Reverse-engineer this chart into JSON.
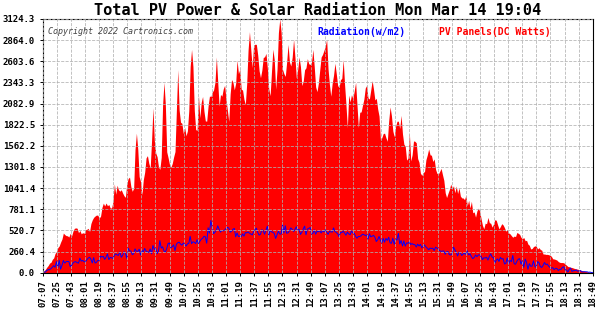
{
  "title": "Total PV Power & Solar Radiation Mon Mar 14 19:04",
  "copyright": "Copyright 2022 Cartronics.com",
  "legend_radiation": "Radiation(w/m2)",
  "legend_pv": "PV Panels(DC Watts)",
  "yticks": [
    0.0,
    260.4,
    520.7,
    781.1,
    1041.4,
    1301.8,
    1562.2,
    1822.5,
    2082.9,
    2343.3,
    2603.6,
    2864.0,
    3124.3
  ],
  "ymax": 3124.3,
  "bg_color": "#ffffff",
  "plot_bg_color": "#ffffff",
  "grid_color": "#b0b0b0",
  "pv_color": "#ff0000",
  "radiation_color": "#0000ff",
  "title_color": "#000000",
  "title_fontsize": 11,
  "tick_fontsize": 6.5,
  "xtick_labels": [
    "07:07",
    "07:25",
    "07:43",
    "08:01",
    "08:19",
    "08:37",
    "08:55",
    "09:13",
    "09:31",
    "09:49",
    "10:07",
    "10:25",
    "10:43",
    "11:01",
    "11:19",
    "11:37",
    "11:55",
    "12:13",
    "12:31",
    "12:49",
    "13:07",
    "13:25",
    "13:43",
    "14:01",
    "14:19",
    "14:37",
    "14:55",
    "15:13",
    "15:31",
    "15:49",
    "16:07",
    "16:25",
    "16:43",
    "17:01",
    "17:19",
    "17:37",
    "17:55",
    "18:13",
    "18:31",
    "18:49"
  ]
}
